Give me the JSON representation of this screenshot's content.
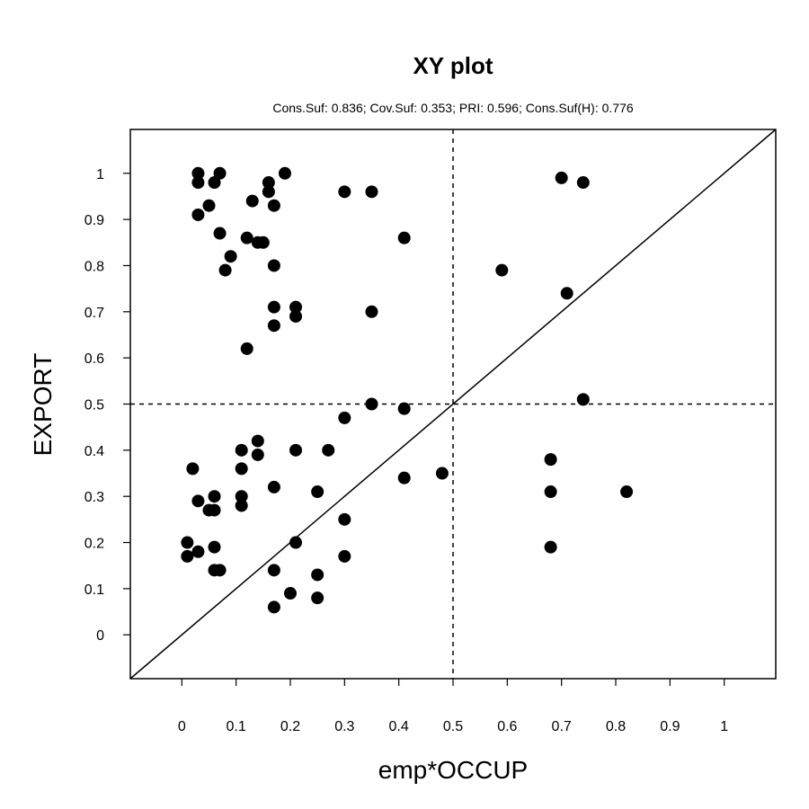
{
  "chart_data": {
    "type": "scatter",
    "title": "XY plot",
    "subtitle": "Cons.Suf: 0.836; Cov.Suf: 0.353; PRI: 0.596; Cons.Suf(H): 0.776",
    "xlabel": "emp*OCCUP",
    "ylabel": "EXPORT",
    "xlim": [
      -0.095,
      1.095
    ],
    "ylim": [
      -0.095,
      1.095
    ],
    "xticks": [
      "0",
      "0.1",
      "0.2",
      "0.3",
      "0.4",
      "0.5",
      "0.6",
      "0.7",
      "0.8",
      "0.9",
      "1"
    ],
    "yticks": [
      "0",
      "0.1",
      "0.2",
      "0.3",
      "0.4",
      "0.5",
      "0.6",
      "0.7",
      "0.8",
      "0.9",
      "1"
    ],
    "reference_lines": {
      "vertical": 0.5,
      "horizontal": 0.5,
      "diagonal": true
    },
    "point_color": "#000000",
    "points": [
      {
        "x": 0.03,
        "y": 1.0
      },
      {
        "x": 0.07,
        "y": 1.0
      },
      {
        "x": 0.19,
        "y": 1.0
      },
      {
        "x": 0.03,
        "y": 0.98
      },
      {
        "x": 0.06,
        "y": 0.98
      },
      {
        "x": 0.16,
        "y": 0.98
      },
      {
        "x": 0.16,
        "y": 0.96
      },
      {
        "x": 0.3,
        "y": 0.96
      },
      {
        "x": 0.35,
        "y": 0.96
      },
      {
        "x": 0.13,
        "y": 0.94
      },
      {
        "x": 0.05,
        "y": 0.93
      },
      {
        "x": 0.17,
        "y": 0.93
      },
      {
        "x": 0.03,
        "y": 0.91
      },
      {
        "x": 0.07,
        "y": 0.87
      },
      {
        "x": 0.12,
        "y": 0.86
      },
      {
        "x": 0.41,
        "y": 0.86
      },
      {
        "x": 0.14,
        "y": 0.85
      },
      {
        "x": 0.15,
        "y": 0.85
      },
      {
        "x": 0.09,
        "y": 0.82
      },
      {
        "x": 0.17,
        "y": 0.8
      },
      {
        "x": 0.08,
        "y": 0.79
      },
      {
        "x": 0.17,
        "y": 0.71
      },
      {
        "x": 0.21,
        "y": 0.71
      },
      {
        "x": 0.35,
        "y": 0.7
      },
      {
        "x": 0.21,
        "y": 0.69
      },
      {
        "x": 0.17,
        "y": 0.67
      },
      {
        "x": 0.12,
        "y": 0.62
      },
      {
        "x": 0.35,
        "y": 0.5
      },
      {
        "x": 0.41,
        "y": 0.49
      },
      {
        "x": 0.3,
        "y": 0.47
      },
      {
        "x": 0.14,
        "y": 0.42
      },
      {
        "x": 0.11,
        "y": 0.4
      },
      {
        "x": 0.21,
        "y": 0.4
      },
      {
        "x": 0.27,
        "y": 0.4
      },
      {
        "x": 0.14,
        "y": 0.39
      },
      {
        "x": 0.02,
        "y": 0.36
      },
      {
        "x": 0.11,
        "y": 0.36
      },
      {
        "x": 0.48,
        "y": 0.35
      },
      {
        "x": 0.41,
        "y": 0.34
      },
      {
        "x": 0.17,
        "y": 0.32
      },
      {
        "x": 0.25,
        "y": 0.31
      },
      {
        "x": 0.06,
        "y": 0.3
      },
      {
        "x": 0.11,
        "y": 0.3
      },
      {
        "x": 0.03,
        "y": 0.29
      },
      {
        "x": 0.11,
        "y": 0.28
      },
      {
        "x": 0.05,
        "y": 0.27
      },
      {
        "x": 0.06,
        "y": 0.27
      },
      {
        "x": 0.3,
        "y": 0.25
      },
      {
        "x": 0.01,
        "y": 0.2
      },
      {
        "x": 0.21,
        "y": 0.2
      },
      {
        "x": 0.06,
        "y": 0.19
      },
      {
        "x": 0.03,
        "y": 0.18
      },
      {
        "x": 0.01,
        "y": 0.17
      },
      {
        "x": 0.3,
        "y": 0.17
      },
      {
        "x": 0.06,
        "y": 0.14
      },
      {
        "x": 0.07,
        "y": 0.14
      },
      {
        "x": 0.17,
        "y": 0.14
      },
      {
        "x": 0.25,
        "y": 0.13
      },
      {
        "x": 0.2,
        "y": 0.09
      },
      {
        "x": 0.25,
        "y": 0.08
      },
      {
        "x": 0.17,
        "y": 0.06
      },
      {
        "x": 0.7,
        "y": 0.99
      },
      {
        "x": 0.74,
        "y": 0.98
      },
      {
        "x": 0.59,
        "y": 0.79
      },
      {
        "x": 0.71,
        "y": 0.74
      },
      {
        "x": 0.74,
        "y": 0.51
      },
      {
        "x": 0.68,
        "y": 0.38
      },
      {
        "x": 0.68,
        "y": 0.31
      },
      {
        "x": 0.82,
        "y": 0.31
      },
      {
        "x": 0.68,
        "y": 0.19
      }
    ]
  }
}
